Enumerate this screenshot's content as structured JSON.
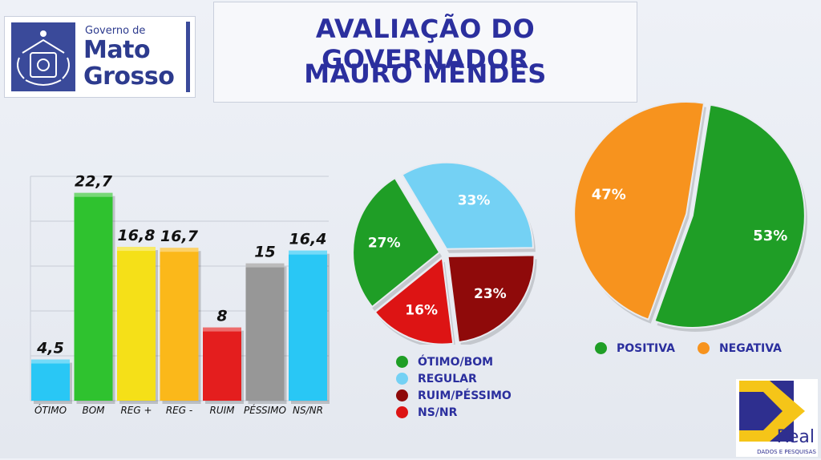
{
  "header": {
    "logo_small": "Governo de",
    "logo_line1": "Mato",
    "logo_line2": "Grosso",
    "title_line1": "AVALIAÇÃO DO GOVERNADOR",
    "title_line2": "MAURO MENDES"
  },
  "colors": {
    "title": "#2b2f9e",
    "logo_blue": "#3a4a9a"
  },
  "chart_data": [
    {
      "type": "bar",
      "title": "",
      "categories": [
        "ÓTIMO",
        "BOM",
        "REG +",
        "REG -",
        "RUIM",
        "PÉSSIMO",
        "NS/NR"
      ],
      "values": [
        4.5,
        22.7,
        16.8,
        16.7,
        8,
        15,
        16.4
      ],
      "value_labels": [
        "4,5",
        "22,7",
        "16,8",
        "16,7",
        "8",
        "15",
        "16,4"
      ],
      "colors": [
        "#29c7f5",
        "#2fc22f",
        "#f5e018",
        "#fbb81a",
        "#e41e1e",
        "#979797",
        "#29c7f5"
      ],
      "ylim": [
        0,
        25
      ],
      "grid": true
    },
    {
      "type": "pie",
      "labels": [
        "ÓTIMO/BOM",
        "REGULAR",
        "RUIM/PÉSSIMO",
        "NS/NR"
      ],
      "values": [
        27,
        33,
        23,
        16
      ],
      "value_labels": [
        "27%",
        "33%",
        "23%",
        "16%"
      ],
      "colors": [
        "#1f9e26",
        "#74d1f4",
        "#8f0a0a",
        "#dd1414"
      ],
      "legend_position": "bottom"
    },
    {
      "type": "pie",
      "labels": [
        "POSITIVA",
        "NEGATIVA"
      ],
      "values": [
        53,
        47
      ],
      "value_labels": [
        "53%",
        "47%"
      ],
      "colors": [
        "#1f9e26",
        "#f7931e"
      ],
      "legend_position": "bottom"
    }
  ],
  "brand": {
    "name": "Real",
    "tagline": "DADOS E PESQUISAS"
  }
}
